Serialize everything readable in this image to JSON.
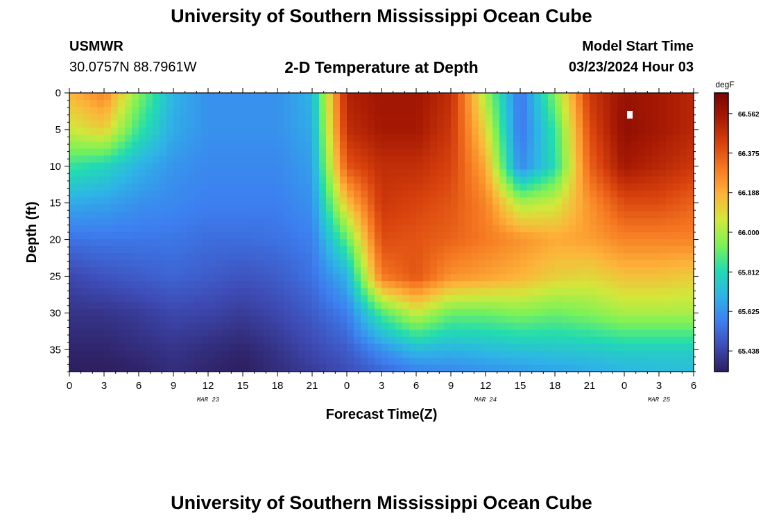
{
  "page": {
    "title": "University of Southern Mississippi Ocean Cube",
    "footer_title": "University of Southern Mississippi Ocean Cube",
    "station": "USMWR",
    "coords": "30.0757N  88.7961W",
    "subtitle": "2-D Temperature at Depth",
    "model_label": "Model Start Time",
    "model_time": "03/23/2024 Hour 03",
    "marker_color": "#ffffff"
  },
  "chart_data": {
    "type": "heatmap",
    "title": "2-D Temperature at Depth",
    "xlabel": "Forecast Time(Z)",
    "ylabel": "Depth (ft)",
    "xlim": [
      0,
      54
    ],
    "ylim": [
      0,
      38
    ],
    "x_tick_values": [
      0,
      3,
      6,
      9,
      12,
      15,
      18,
      21,
      24,
      27,
      30,
      33,
      36,
      39,
      42,
      45,
      48,
      51,
      54
    ],
    "x_tick_labels": [
      "0",
      "3",
      "6",
      "9",
      "12",
      "15",
      "18",
      "21",
      "0",
      "3",
      "6",
      "9",
      "12",
      "15",
      "18",
      "21",
      "0",
      "3",
      "6"
    ],
    "y_tick_values": [
      0,
      5,
      10,
      15,
      20,
      25,
      30,
      35
    ],
    "y_tick_labels": [
      "0",
      "5",
      "10",
      "15",
      "20",
      "25",
      "30",
      "35"
    ],
    "date_labels": [
      {
        "text": "MAR 23",
        "x": 12
      },
      {
        "text": "MAR 24",
        "x": 36
      },
      {
        "text": "MAR 25",
        "x": 51
      }
    ],
    "colorbar": {
      "unit": "degF",
      "vmin": 65.34,
      "vmax": 66.66,
      "tick_values": [
        65.438,
        65.625,
        65.812,
        66.0,
        66.188,
        66.375,
        66.562
      ],
      "tick_labels": [
        "65.438",
        "65.625",
        "65.812",
        "66.000",
        "66.188",
        "66.375",
        "66.562"
      ],
      "colors": [
        "#2d1e5e",
        "#3e4bb5",
        "#3d7ff0",
        "#2eb4e6",
        "#22dcb0",
        "#7cf257",
        "#d2e83b",
        "#fdb33a",
        "#f67a22",
        "#d8420d",
        "#a81a03",
        "#7a0403"
      ]
    },
    "x_hours": [
      0,
      3,
      6,
      9,
      12,
      15,
      18,
      21,
      24,
      27,
      30,
      33,
      36,
      39,
      42,
      45,
      48,
      51,
      54
    ],
    "depths_ft": [
      0,
      5,
      10,
      15,
      20,
      25,
      30,
      35,
      38
    ],
    "temperature_degF": [
      [
        66.17,
        66.28,
        65.95,
        65.7,
        65.62,
        65.62,
        65.62,
        65.7,
        66.52,
        66.56,
        66.56,
        66.48,
        66.0,
        65.55,
        65.95,
        66.45,
        66.58,
        66.55,
        66.5
      ],
      [
        66.05,
        66.12,
        65.85,
        65.68,
        65.62,
        65.62,
        65.62,
        65.68,
        66.48,
        66.55,
        66.55,
        66.45,
        66.1,
        65.55,
        65.85,
        66.4,
        66.6,
        66.55,
        66.5
      ],
      [
        65.85,
        65.8,
        65.7,
        65.63,
        65.6,
        65.6,
        65.6,
        65.65,
        66.38,
        66.48,
        66.48,
        66.42,
        66.2,
        65.6,
        65.82,
        66.35,
        66.55,
        66.5,
        66.45
      ],
      [
        65.68,
        65.66,
        65.62,
        65.6,
        65.58,
        65.58,
        65.58,
        65.62,
        66.15,
        66.45,
        66.42,
        66.38,
        66.28,
        66.0,
        66.05,
        66.25,
        66.4,
        66.4,
        66.35
      ],
      [
        65.55,
        65.56,
        65.56,
        65.56,
        65.54,
        65.54,
        65.55,
        65.58,
        65.9,
        66.4,
        66.38,
        66.35,
        66.3,
        66.25,
        66.2,
        66.22,
        66.28,
        66.28,
        66.28
      ],
      [
        65.45,
        65.48,
        65.5,
        65.52,
        65.5,
        65.48,
        65.5,
        65.55,
        65.7,
        66.3,
        66.38,
        66.25,
        66.22,
        66.18,
        66.12,
        66.1,
        66.15,
        66.15,
        66.12
      ],
      [
        65.4,
        65.4,
        65.42,
        65.45,
        65.44,
        65.42,
        65.45,
        65.5,
        65.58,
        65.88,
        66.05,
        65.92,
        65.92,
        65.95,
        65.92,
        65.95,
        66.0,
        66.0,
        66.0
      ],
      [
        65.36,
        65.36,
        65.38,
        65.4,
        65.38,
        65.36,
        65.4,
        65.45,
        65.5,
        65.62,
        65.72,
        65.7,
        65.72,
        65.74,
        65.75,
        65.76,
        65.78,
        65.78,
        65.78
      ],
      [
        65.34,
        65.34,
        65.35,
        65.38,
        65.36,
        65.34,
        65.38,
        65.42,
        65.46,
        65.52,
        65.58,
        65.6,
        65.62,
        65.64,
        65.66,
        65.68,
        65.7,
        65.72,
        65.72
      ]
    ]
  }
}
